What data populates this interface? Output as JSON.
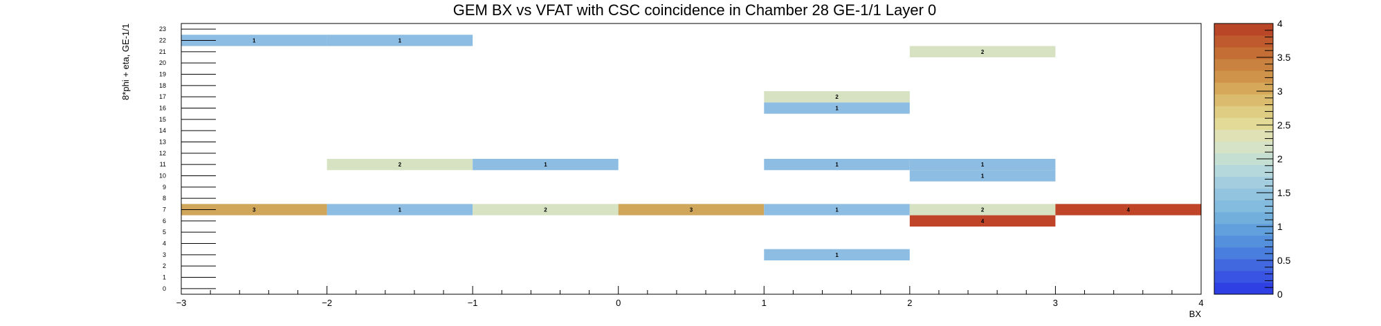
{
  "chart_data": {
    "type": "heatmap",
    "title": "GEM BX vs VFAT with CSC coincidence in Chamber 28 GE-1/1 Layer 0",
    "xlabel": "BX",
    "ylabel": "8*phi + eta, GE-1/1",
    "xlim": [
      -3,
      4
    ],
    "ylim": [
      0,
      24
    ],
    "x_ticks": [
      "−3",
      "−2",
      "−1",
      "0",
      "1",
      "2",
      "3",
      "4"
    ],
    "y_ticks": [
      "0",
      "1",
      "2",
      "3",
      "4",
      "5",
      "6",
      "7",
      "8",
      "9",
      "10",
      "11",
      "12",
      "13",
      "14",
      "15",
      "16",
      "17",
      "18",
      "19",
      "20",
      "21",
      "22",
      "23"
    ],
    "zlim": [
      0,
      4
    ],
    "z_ticks": [
      "0",
      "0.5",
      "1",
      "1.5",
      "2",
      "2.5",
      "3",
      "3.5",
      "4"
    ],
    "cells": [
      {
        "x": -3,
        "y": 22,
        "value": 1
      },
      {
        "x": -2,
        "y": 22,
        "value": 1
      },
      {
        "x": 2,
        "y": 21,
        "value": 2
      },
      {
        "x": 1,
        "y": 17,
        "value": 2
      },
      {
        "x": 1,
        "y": 16,
        "value": 1
      },
      {
        "x": -2,
        "y": 11,
        "value": 2
      },
      {
        "x": -1,
        "y": 11,
        "value": 1
      },
      {
        "x": 1,
        "y": 11,
        "value": 1
      },
      {
        "x": 2,
        "y": 11,
        "value": 1
      },
      {
        "x": 2,
        "y": 10,
        "value": 1
      },
      {
        "x": -3,
        "y": 7,
        "value": 3
      },
      {
        "x": -2,
        "y": 7,
        "value": 1
      },
      {
        "x": -1,
        "y": 7,
        "value": 2
      },
      {
        "x": 0,
        "y": 7,
        "value": 3
      },
      {
        "x": 1,
        "y": 7,
        "value": 1
      },
      {
        "x": 2,
        "y": 7,
        "value": 2
      },
      {
        "x": 3,
        "y": 7,
        "value": 4
      },
      {
        "x": 2,
        "y": 6,
        "value": 4
      },
      {
        "x": 1,
        "y": 3,
        "value": 1
      }
    ],
    "colors": {
      "0": "#2f3fe0",
      "1": "#8dbde2",
      "2": "#d6e2c2",
      "3": "#d0a75a",
      "4": "#bf4428"
    },
    "palette": [
      "#2e3fe3",
      "#3954e2",
      "#4168df",
      "#4a7ede",
      "#5590dd",
      "#62a0dd",
      "#72afdd",
      "#84bce0",
      "#92c4df",
      "#a4cedf",
      "#b4d8dc",
      "#c6dfd3",
      "#d7e3c7",
      "#e0e1b4",
      "#e3da97",
      "#dfcd83",
      "#dbbc6e",
      "#d6a95a",
      "#cf9449",
      "#c9823f",
      "#c46e36",
      "#bf5a2e",
      "#b94727"
    ]
  }
}
